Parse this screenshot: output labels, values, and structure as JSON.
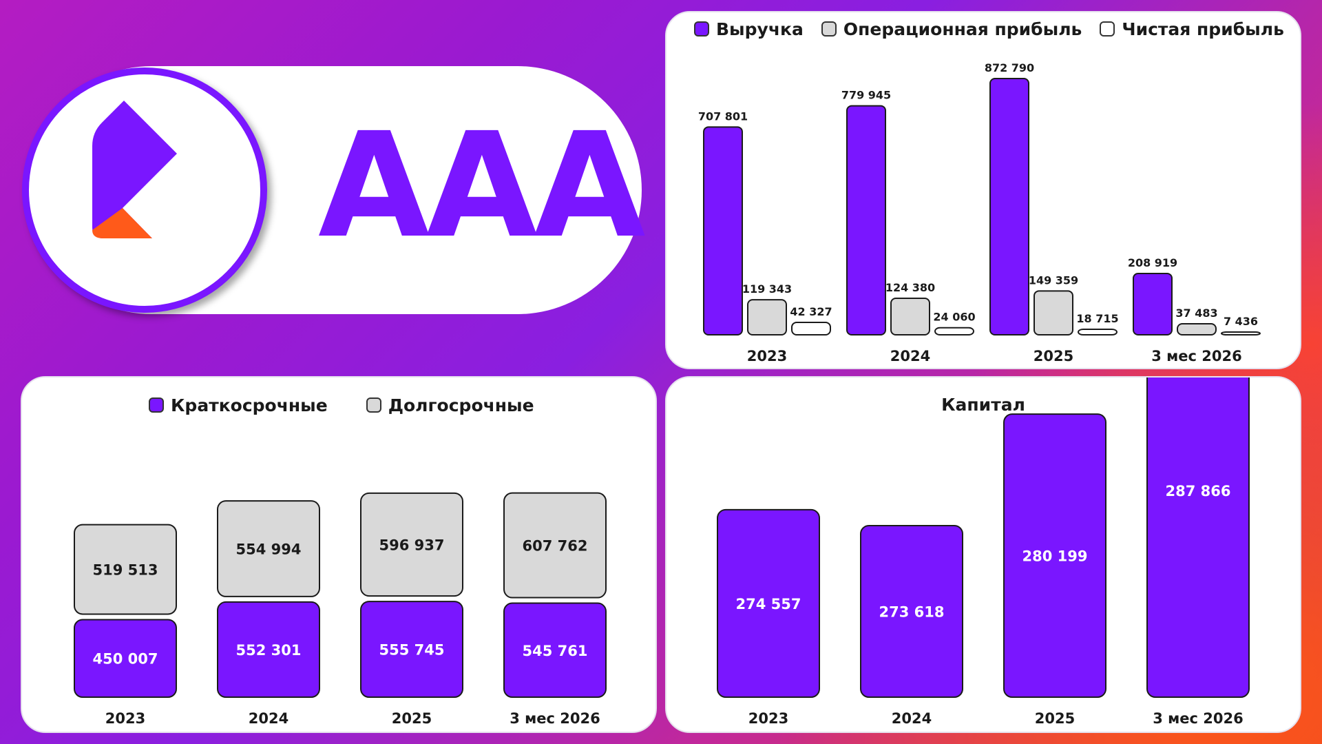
{
  "brand": {
    "name": "AAA",
    "colors": {
      "primary": "#7a16ff",
      "accent": "#ff5a1a"
    }
  },
  "colors": {
    "revenue": "#7a16ff",
    "operating": "#d9d9d9",
    "net": "#ffffff",
    "short": "#7a16ff",
    "long": "#d9d9d9",
    "capital": "#7a16ff"
  },
  "chart_data": [
    {
      "id": "income",
      "type": "bar",
      "title": "",
      "categories": [
        "2023",
        "2024",
        "2025",
        "3 мес 2026"
      ],
      "series": [
        {
          "name": "Выручка",
          "values": [
            707801,
            779945,
            872790,
            208919
          ],
          "labels": [
            "707 801",
            "779 945",
            "872 790",
            "208 919"
          ]
        },
        {
          "name": "Операционная прибыль",
          "values": [
            119343,
            124380,
            149359,
            37483
          ],
          "labels": [
            "119 343",
            "124 380",
            "149 359",
            "37 483"
          ]
        },
        {
          "name": "Чистая прибыль",
          "values": [
            42327,
            24060,
            18715,
            7436
          ],
          "labels": [
            "42 327",
            "24 060",
            "18 715",
            "7 436"
          ]
        }
      ],
      "ylim": [
        0,
        872790
      ],
      "grid": false,
      "legend": "top"
    },
    {
      "id": "liabilities",
      "type": "bar",
      "stacked": true,
      "title": "",
      "categories": [
        "2023",
        "2024",
        "2025",
        "3 мес 2026"
      ],
      "series": [
        {
          "name": "Краткосрочные",
          "values": [
            450007,
            552301,
            555745,
            545761
          ],
          "labels": [
            "450 007",
            "552 301",
            "555 745",
            "545 761"
          ]
        },
        {
          "name": "Долгосрочные",
          "values": [
            519513,
            554994,
            596937,
            607762
          ],
          "labels": [
            "519 513",
            "554 994",
            "596 937",
            "607 762"
          ]
        }
      ],
      "grid": false,
      "legend": "top"
    },
    {
      "id": "capital",
      "type": "bar",
      "title": "Капитал",
      "categories": [
        "2023",
        "2024",
        "2025",
        "3 мес 2026"
      ],
      "series": [
        {
          "name": "",
          "values": [
            274557,
            273618,
            280199,
            287866
          ],
          "labels": [
            "274 557",
            "273 618",
            "280 199",
            "287 866"
          ]
        }
      ],
      "grid": false,
      "legend": "none"
    }
  ]
}
